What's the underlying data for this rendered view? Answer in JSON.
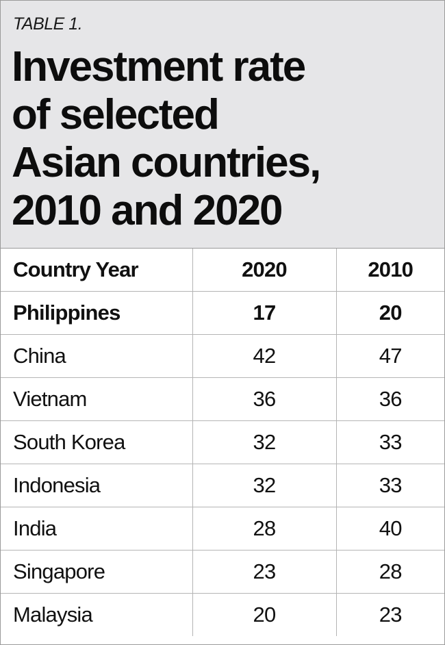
{
  "label": "TABLE 1.",
  "title_lines": [
    "Investment rate",
    "of selected",
    "Asian countries,",
    "2010 and 2020"
  ],
  "chart_data": {
    "type": "table",
    "title": "Investment rate of selected Asian countries, 2010 and 2020",
    "columns": [
      "Country Year",
      "2020",
      "2010"
    ],
    "rows": [
      {
        "country": "Philippines",
        "v2020": "17",
        "v2010": "20",
        "emphasis": true
      },
      {
        "country": "China",
        "v2020": "42",
        "v2010": "47"
      },
      {
        "country": "Vietnam",
        "v2020": "36",
        "v2010": "36"
      },
      {
        "country": "South Korea",
        "v2020": "32",
        "v2010": "33"
      },
      {
        "country": "Indonesia",
        "v2020": "32",
        "v2010": "33"
      },
      {
        "country": "India",
        "v2020": "28",
        "v2010": "40"
      },
      {
        "country": "Singapore",
        "v2020": "23",
        "v2010": "28"
      },
      {
        "country": "Malaysia",
        "v2020": "20",
        "v2010": "23"
      }
    ]
  }
}
